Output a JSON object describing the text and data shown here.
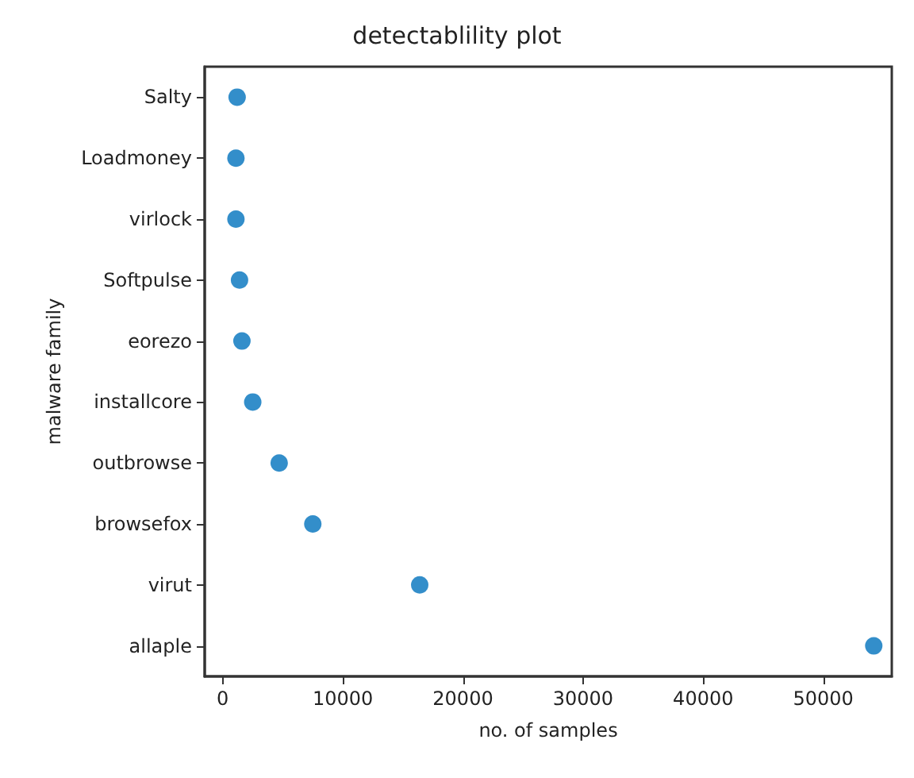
{
  "chart_data": {
    "type": "scatter",
    "title": "detectablility plot",
    "xlabel": "no. of samples",
    "ylabel": "malware family",
    "orientation": "horizontal",
    "categories": [
      "Salty",
      "Loadmoney",
      "virlock",
      "Softpulse",
      "eorezo",
      "installcore",
      "outbrowse",
      "browsefox",
      "virut",
      "allaple"
    ],
    "values": [
      1200,
      1100,
      1100,
      1400,
      1600,
      2500,
      4700,
      7500,
      16400,
      54200
    ],
    "color": "#0072bd",
    "marker": "circle",
    "grid": false,
    "xlim": [
      -1500,
      55700
    ],
    "xticks": [
      0,
      10000,
      20000,
      30000,
      40000,
      50000
    ]
  }
}
